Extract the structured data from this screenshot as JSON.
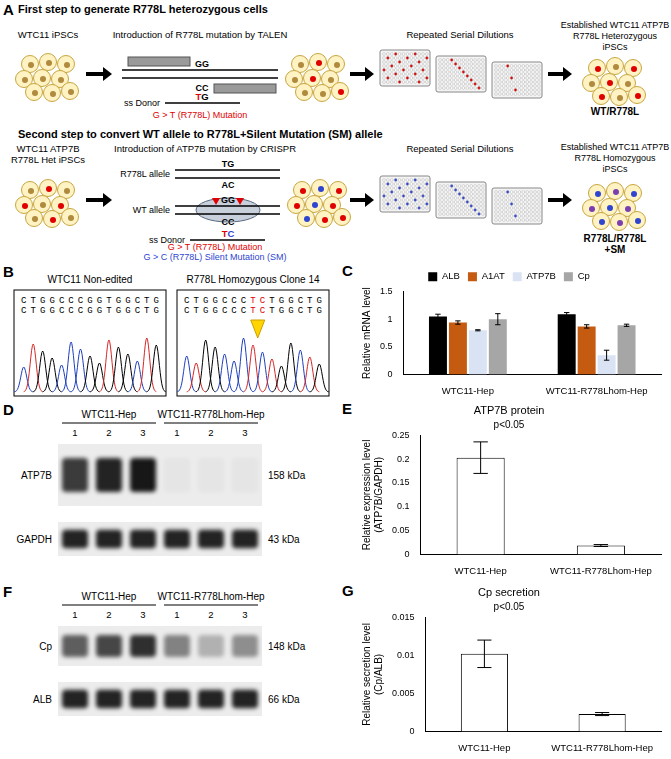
{
  "panels": {
    "A": {
      "label": "A",
      "step1": {
        "title": "First step to generate R778L heterozygous cells",
        "start": "WTC11 iPSCs",
        "method": "Introduction of R778L mutation by TALEN",
        "target_seq": [
          "GG",
          "CC"
        ],
        "donor": "ss Donor",
        "donor_seq": "TG",
        "mutation": "G > T (R778L) Mutation",
        "dilution": "Repeated Serial Dilutions",
        "result": [
          "Established WTC11 ATP7B",
          "R778L Heterozygous",
          "iPSCs"
        ],
        "genotype": "WT/R778L"
      },
      "step2": {
        "title": "Second step to convert WT allele to R778L+Silent Mutation (SM) allele",
        "start": [
          "WTC11 ATP7B",
          "R778L Het iPSCs"
        ],
        "method": "Introduction of ATP7B mutation by CRISPR",
        "allele1": "R778L allele",
        "allele1_seq": [
          "TG",
          "AC"
        ],
        "allele2": "WT allele",
        "allele2_seq": [
          "GG",
          "CC"
        ],
        "donor": "ss Donor",
        "donor_seq": "TC",
        "mutations": [
          "G > T (R778L) Mutation",
          "G > C (R778L) Silent Mutation (SM)"
        ],
        "dilution": "Repeated Serial Dilutions",
        "result": [
          "Established WTC11 ATP7B",
          "R778L Homozygous",
          "iPSCs"
        ],
        "genotype": [
          "R778L/R778L",
          "+SM"
        ]
      }
    },
    "B": {
      "label": "B",
      "samples": [
        {
          "name": "WTC11 Non-edited",
          "seq": [
            "CTGGCCCGGTGGCTG",
            "CTGGCCCGGTGGCTG"
          ]
        },
        {
          "name": "R778L Homozygous Clone 14",
          "seq": [
            "CTGGCCCTCTGGCTG",
            "CTGGCCCTCTGGCTG"
          ]
        }
      ]
    },
    "D": {
      "label": "D",
      "groups": [
        {
          "name": "WTC11-Hep",
          "lanes": [
            1,
            2,
            3
          ]
        },
        {
          "name": "WTC11-R778Lhom-Hep",
          "lanes": [
            1,
            2,
            3
          ]
        }
      ],
      "rows": [
        {
          "name": "ATP7B",
          "size": "158 kDa",
          "intensity": [
            0.75,
            0.85,
            0.9,
            0.03,
            0.03,
            0.03
          ]
        },
        {
          "name": "GAPDH",
          "size": "43 kDa",
          "intensity": [
            0.85,
            0.85,
            0.85,
            0.85,
            0.85,
            0.85
          ]
        }
      ]
    },
    "F": {
      "label": "F",
      "groups": [
        {
          "name": "WTC11-Hep",
          "lanes": [
            1,
            2,
            3
          ]
        },
        {
          "name": "WTC11-R778Lhom-Hep",
          "lanes": [
            1,
            2,
            3
          ]
        }
      ],
      "rows": [
        {
          "name": "Cp",
          "size": "148 kDa",
          "intensity": [
            0.6,
            0.7,
            0.8,
            0.45,
            0.25,
            0.4
          ]
        },
        {
          "name": "ALB",
          "size": "66 kDa",
          "intensity": [
            0.85,
            0.85,
            0.85,
            0.85,
            0.85,
            0.85
          ]
        }
      ]
    }
  },
  "chart_data": [
    {
      "panel": "C",
      "type": "bar",
      "categories": [
        "WTC11-Hep",
        "WTC11-R778Lhom-Hep"
      ],
      "series": [
        {
          "name": "ALB",
          "color": "#000000",
          "values": [
            1.05,
            1.09
          ],
          "errors": [
            0.04,
            0.03
          ]
        },
        {
          "name": "A1AT",
          "color": "#c55a11",
          "values": [
            0.94,
            0.87
          ],
          "errors": [
            0.03,
            0.03
          ]
        },
        {
          "name": "ATP7B",
          "color": "#dae3f3",
          "values": [
            0.8,
            0.35
          ],
          "errors": [
            0.01,
            0.09
          ]
        },
        {
          "name": "Cp",
          "color": "#a6a6a6",
          "values": [
            1,
            0.89
          ],
          "errors": [
            0.1,
            0.02
          ]
        }
      ],
      "y_label": "Relative mRNA level",
      "ylim": [
        0,
        1.5
      ],
      "yticks": [
        0,
        0.5,
        1,
        1.5
      ],
      "grid": false,
      "legend": "top"
    },
    {
      "panel": "E",
      "type": "bar",
      "title": "ATP7B protein",
      "annotation": "p<0.05",
      "categories": [
        "WTC11-Hep",
        "WTC11-R778Lhom-Hep"
      ],
      "values": [
        0.203,
        0.019
      ],
      "errors": [
        0.033,
        0.002
      ],
      "color": "#ffffff",
      "y_label": [
        "Relative expression level",
        "(ATP7B/GAPDH)"
      ],
      "ylim": [
        0,
        0.25
      ],
      "yticks": [
        0,
        0.05,
        0.1,
        0.15,
        0.2,
        0.25
      ],
      "grid": false
    },
    {
      "panel": "G",
      "type": "bar",
      "title": "Cp secretion",
      "annotation": "p<0.05",
      "categories": [
        "WTC11-Hep",
        "WTC11-R778Lhom-Hep"
      ],
      "values": [
        0.0102,
        0.0023
      ],
      "errors": [
        0.0018,
        0.0002
      ],
      "color": "#ffffff",
      "y_label": [
        "Relative secretion level",
        "(Cp/ALB)"
      ],
      "ylim": [
        0,
        0.015
      ],
      "yticks": [
        0,
        0.005,
        0.01,
        0.015
      ],
      "grid": false
    }
  ]
}
